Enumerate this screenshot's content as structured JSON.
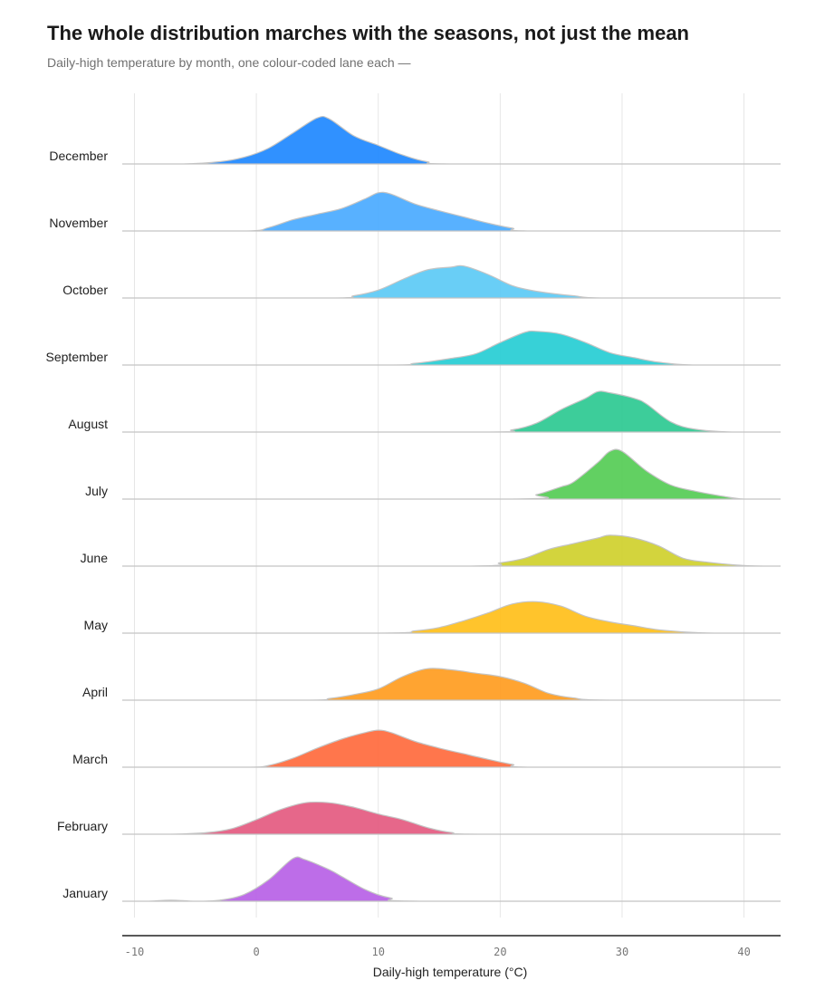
{
  "chart_data": {
    "type": "ridgeline",
    "title": "The whole distribution marches with the seasons, not just the mean",
    "subtitle": "Daily-high temperature by month, one colour-coded lane each —",
    "xlabel": "Daily-high temperature (°C)",
    "xlim": [
      -11,
      43
    ],
    "xticks": [
      -10,
      0,
      10,
      20,
      30,
      40
    ],
    "grid": true,
    "series": [
      {
        "name": "December",
        "color": "#1e88ff",
        "points": [
          [
            -11,
            0
          ],
          [
            -6,
            0
          ],
          [
            -3,
            0.04
          ],
          [
            -1,
            0.12
          ],
          [
            1,
            0.28
          ],
          [
            3,
            0.55
          ],
          [
            5,
            0.82
          ],
          [
            6,
            0.8
          ],
          [
            8,
            0.5
          ],
          [
            10,
            0.33
          ],
          [
            12,
            0.16
          ],
          [
            14,
            0.04
          ],
          [
            17,
            0
          ],
          [
            43,
            0
          ]
        ]
      },
      {
        "name": "November",
        "color": "#4aaaff",
        "points": [
          [
            -11,
            0
          ],
          [
            -1,
            0
          ],
          [
            1,
            0.06
          ],
          [
            3,
            0.2
          ],
          [
            5,
            0.3
          ],
          [
            7,
            0.4
          ],
          [
            9,
            0.58
          ],
          [
            10,
            0.68
          ],
          [
            11,
            0.66
          ],
          [
            13,
            0.48
          ],
          [
            15,
            0.36
          ],
          [
            17,
            0.25
          ],
          [
            19,
            0.14
          ],
          [
            21,
            0.05
          ],
          [
            23,
            0
          ],
          [
            43,
            0
          ]
        ]
      },
      {
        "name": "October",
        "color": "#5ccaf5",
        "points": [
          [
            -11,
            0
          ],
          [
            6,
            0
          ],
          [
            8,
            0.04
          ],
          [
            10,
            0.14
          ],
          [
            12,
            0.33
          ],
          [
            14,
            0.5
          ],
          [
            16,
            0.55
          ],
          [
            17,
            0.57
          ],
          [
            19,
            0.42
          ],
          [
            21,
            0.22
          ],
          [
            23,
            0.12
          ],
          [
            26,
            0.04
          ],
          [
            29,
            0
          ],
          [
            43,
            0
          ]
        ]
      },
      {
        "name": "September",
        "color": "#26cdd4",
        "points": [
          [
            -11,
            0
          ],
          [
            10,
            0
          ],
          [
            13,
            0.03
          ],
          [
            16,
            0.12
          ],
          [
            18,
            0.2
          ],
          [
            20,
            0.4
          ],
          [
            22,
            0.58
          ],
          [
            23,
            0.6
          ],
          [
            25,
            0.55
          ],
          [
            27,
            0.4
          ],
          [
            29,
            0.22
          ],
          [
            31,
            0.13
          ],
          [
            33,
            0.05
          ],
          [
            36,
            0
          ],
          [
            43,
            0
          ]
        ]
      },
      {
        "name": "August",
        "color": "#2cc991",
        "points": [
          [
            -11,
            0
          ],
          [
            18,
            0
          ],
          [
            21,
            0.04
          ],
          [
            23,
            0.16
          ],
          [
            25,
            0.4
          ],
          [
            27,
            0.6
          ],
          [
            28,
            0.72
          ],
          [
            29,
            0.7
          ],
          [
            31,
            0.6
          ],
          [
            32,
            0.5
          ],
          [
            34,
            0.18
          ],
          [
            36,
            0.05
          ],
          [
            39,
            0
          ],
          [
            43,
            0
          ]
        ]
      },
      {
        "name": "July",
        "color": "#55cc55",
        "points": [
          [
            -11,
            0
          ],
          [
            21,
            0
          ],
          [
            23,
            0.08
          ],
          [
            25,
            0.22
          ],
          [
            26,
            0.3
          ],
          [
            28,
            0.65
          ],
          [
            29,
            0.85
          ],
          [
            30,
            0.85
          ],
          [
            32,
            0.5
          ],
          [
            34,
            0.25
          ],
          [
            36,
            0.14
          ],
          [
            38,
            0.06
          ],
          [
            40,
            0
          ],
          [
            43,
            0
          ]
        ]
      },
      {
        "name": "June",
        "color": "#cfd02d",
        "points": [
          [
            -11,
            0
          ],
          [
            17,
            0
          ],
          [
            20,
            0.06
          ],
          [
            22,
            0.14
          ],
          [
            24,
            0.3
          ],
          [
            26,
            0.4
          ],
          [
            28,
            0.5
          ],
          [
            29,
            0.55
          ],
          [
            31,
            0.5
          ],
          [
            33,
            0.36
          ],
          [
            35,
            0.14
          ],
          [
            37,
            0.07
          ],
          [
            40,
            0.01
          ],
          [
            42,
            0
          ],
          [
            43,
            0
          ]
        ]
      },
      {
        "name": "May",
        "color": "#ffbf1a",
        "points": [
          [
            -11,
            0
          ],
          [
            10,
            0
          ],
          [
            13,
            0.04
          ],
          [
            15,
            0.1
          ],
          [
            17,
            0.22
          ],
          [
            19,
            0.36
          ],
          [
            21,
            0.52
          ],
          [
            23,
            0.56
          ],
          [
            25,
            0.48
          ],
          [
            27,
            0.3
          ],
          [
            29,
            0.2
          ],
          [
            31,
            0.13
          ],
          [
            33,
            0.06
          ],
          [
            36,
            0.01
          ],
          [
            38,
            0
          ],
          [
            43,
            0
          ]
        ]
      },
      {
        "name": "April",
        "color": "#ff9c1f",
        "points": [
          [
            -11,
            0
          ],
          [
            4,
            0
          ],
          [
            6,
            0.03
          ],
          [
            8,
            0.1
          ],
          [
            10,
            0.2
          ],
          [
            12,
            0.42
          ],
          [
            14,
            0.56
          ],
          [
            16,
            0.54
          ],
          [
            18,
            0.48
          ],
          [
            20,
            0.42
          ],
          [
            22,
            0.3
          ],
          [
            24,
            0.12
          ],
          [
            26,
            0.04
          ],
          [
            29,
            0
          ],
          [
            43,
            0
          ]
        ]
      },
      {
        "name": "March",
        "color": "#ff6a3d",
        "points": [
          [
            -11,
            0
          ],
          [
            -1,
            0
          ],
          [
            1,
            0.03
          ],
          [
            3,
            0.16
          ],
          [
            5,
            0.34
          ],
          [
            7,
            0.5
          ],
          [
            9,
            0.62
          ],
          [
            10,
            0.66
          ],
          [
            11,
            0.62
          ],
          [
            13,
            0.46
          ],
          [
            15,
            0.34
          ],
          [
            17,
            0.24
          ],
          [
            19,
            0.14
          ],
          [
            21,
            0.05
          ],
          [
            23,
            0
          ],
          [
            43,
            0
          ]
        ]
      },
      {
        "name": "February",
        "color": "#e45a80",
        "points": [
          [
            -11,
            0
          ],
          [
            -7,
            0
          ],
          [
            -4,
            0.03
          ],
          [
            -2,
            0.1
          ],
          [
            0,
            0.26
          ],
          [
            2,
            0.44
          ],
          [
            4,
            0.56
          ],
          [
            6,
            0.56
          ],
          [
            8,
            0.48
          ],
          [
            10,
            0.36
          ],
          [
            12,
            0.26
          ],
          [
            14,
            0.12
          ],
          [
            16,
            0.03
          ],
          [
            19,
            0
          ],
          [
            43,
            0
          ]
        ]
      },
      {
        "name": "January",
        "color": "#b761e6",
        "points": [
          [
            -11,
            0
          ],
          [
            -9,
            0
          ],
          [
            -7,
            0.02
          ],
          [
            -5,
            0
          ],
          [
            -3,
            0.02
          ],
          [
            -1,
            0.12
          ],
          [
            1,
            0.38
          ],
          [
            3,
            0.76
          ],
          [
            4,
            0.74
          ],
          [
            6,
            0.56
          ],
          [
            7,
            0.44
          ],
          [
            9,
            0.2
          ],
          [
            11,
            0.06
          ],
          [
            14,
            0
          ],
          [
            43,
            0
          ]
        ]
      }
    ]
  }
}
